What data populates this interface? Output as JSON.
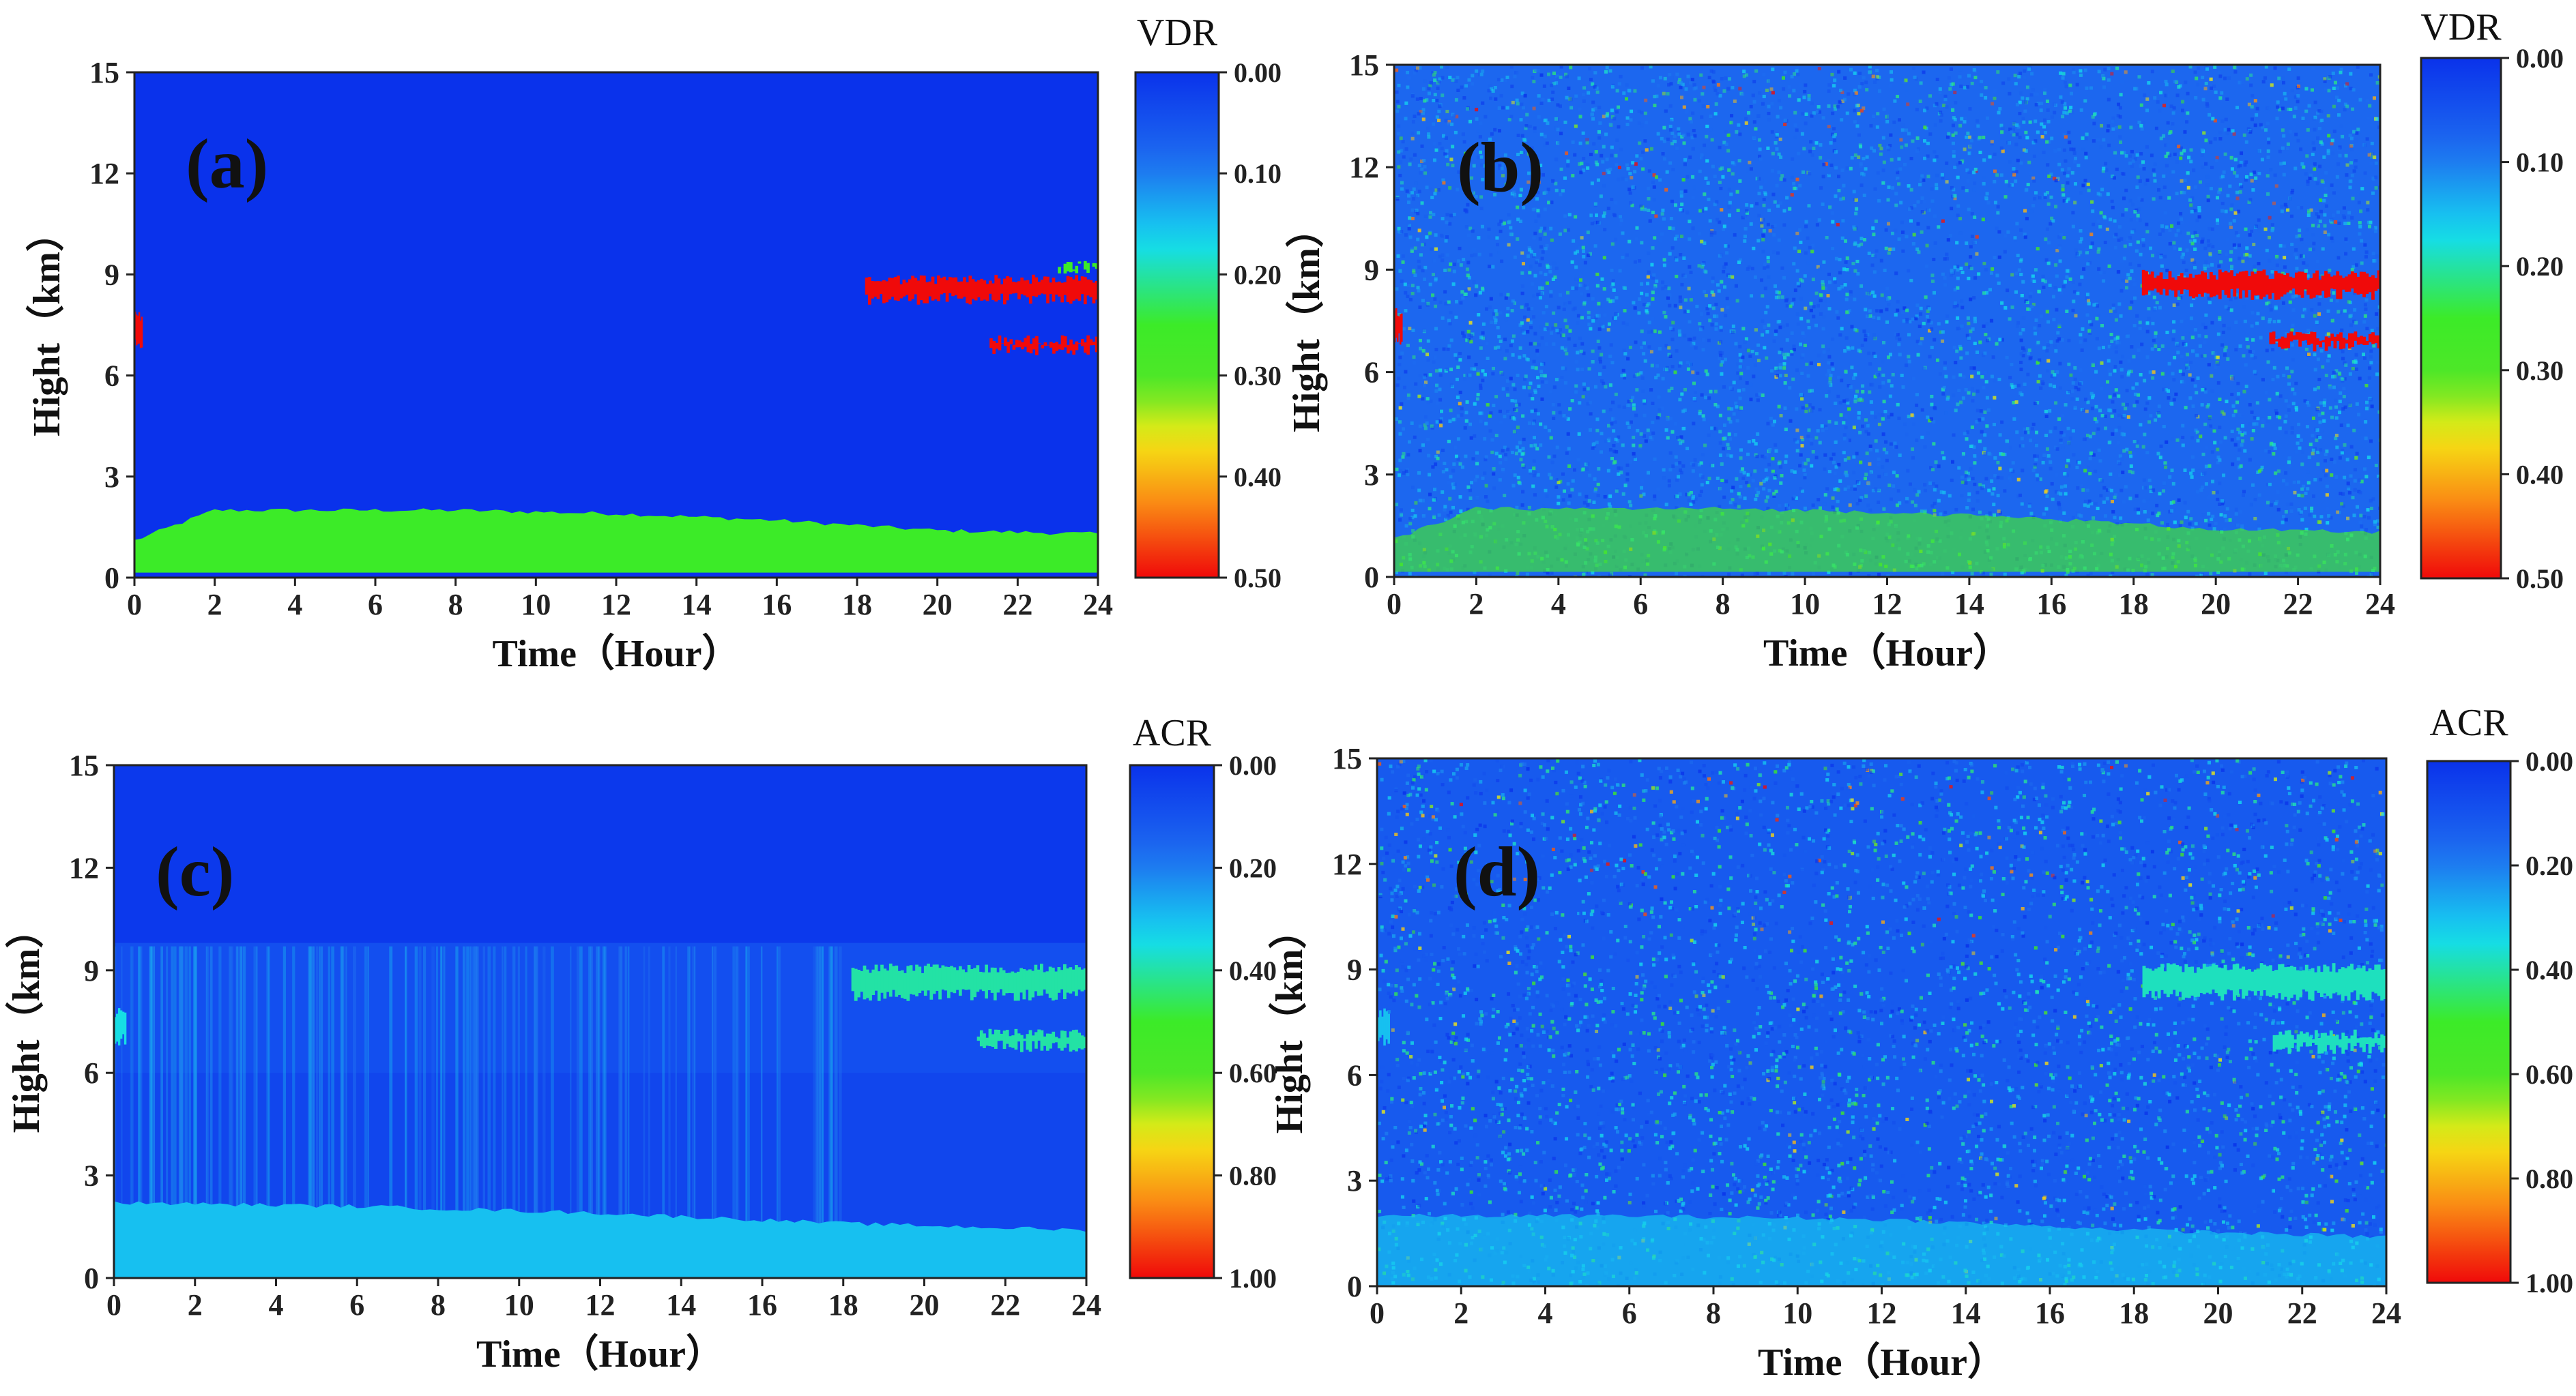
{
  "chart_data": [
    {
      "type": "heatmap",
      "panel_label": "(a)",
      "variant": "clean",
      "quantity": "VDR",
      "xlabel": "Time（Hour）",
      "ylabel": "Hight（km）",
      "xlim": [
        0,
        24
      ],
      "ylim": [
        0,
        15
      ],
      "xticks": [
        "0",
        "2",
        "4",
        "6",
        "8",
        "10",
        "12",
        "14",
        "16",
        "18",
        "20",
        "22",
        "24"
      ],
      "yticks": [
        "0",
        "3",
        "6",
        "9",
        "12",
        "15"
      ],
      "colorbar": {
        "title": "VDR",
        "range": [
          0,
          0.5
        ],
        "ticks": [
          "0.00",
          "0.10",
          "0.20",
          "0.30",
          "0.40",
          "0.50"
        ]
      },
      "background_value": 0.0,
      "layers": [
        {
          "name": "boundary layer aerosol",
          "value": 0.25,
          "t_start": 0.0,
          "t_end": 24.0,
          "top_km": [
            [
              0,
              1.1
            ],
            [
              2,
              2.0
            ],
            [
              8,
              2.0
            ],
            [
              12,
              1.9
            ],
            [
              16,
              1.7
            ],
            [
              20,
              1.4
            ],
            [
              24,
              1.3
            ]
          ],
          "base_km": 0.15
        },
        {
          "name": "ice cloud",
          "value": 0.5,
          "t_start": 18.2,
          "t_end": 24.0,
          "z_low": 8.1,
          "z_high": 9.0
        },
        {
          "name": "ice cloud lower",
          "value": 0.5,
          "t_start": 21.3,
          "t_end": 24.0,
          "z_low": 6.6,
          "z_high": 7.2
        },
        {
          "name": "cloud edge",
          "value": 0.25,
          "t_start": 23.0,
          "t_end": 24.0,
          "z_low": 9.0,
          "z_high": 9.4
        },
        {
          "name": "early cloud",
          "value": 0.5,
          "t_start": 0.0,
          "t_end": 0.2,
          "z_low": 6.8,
          "z_high": 7.9
        }
      ]
    },
    {
      "type": "heatmap",
      "panel_label": "(b)",
      "variant": "noisy",
      "quantity": "VDR",
      "xlabel": "Time（Hour）",
      "ylabel": "Hight（km）",
      "xlim": [
        0,
        24
      ],
      "ylim": [
        0,
        15
      ],
      "xticks": [
        "0",
        "2",
        "4",
        "6",
        "8",
        "10",
        "12",
        "14",
        "16",
        "18",
        "20",
        "22",
        "24"
      ],
      "yticks": [
        "0",
        "3",
        "6",
        "9",
        "12",
        "15"
      ],
      "colorbar": {
        "title": "VDR",
        "range": [
          0,
          0.5
        ],
        "ticks": [
          "0.00",
          "0.10",
          "0.20",
          "0.30",
          "0.40",
          "0.50"
        ]
      },
      "background_value": 0.08,
      "layers": [
        {
          "name": "boundary layer aerosol",
          "value": 0.28,
          "t_start": 0.0,
          "t_end": 24.0,
          "top_km": [
            [
              0,
              1.1
            ],
            [
              2,
              2.0
            ],
            [
              8,
              2.0
            ],
            [
              12,
              1.9
            ],
            [
              16,
              1.7
            ],
            [
              20,
              1.4
            ],
            [
              24,
              1.3
            ]
          ],
          "base_km": 0.15
        },
        {
          "name": "ice cloud",
          "value": 0.5,
          "t_start": 18.2,
          "t_end": 24.0,
          "z_low": 8.1,
          "z_high": 9.0
        },
        {
          "name": "ice cloud lower",
          "value": 0.5,
          "t_start": 21.3,
          "t_end": 24.0,
          "z_low": 6.6,
          "z_high": 7.2
        },
        {
          "name": "early cloud",
          "value": 0.5,
          "t_start": 0.0,
          "t_end": 0.2,
          "z_low": 6.8,
          "z_high": 7.9
        }
      ]
    },
    {
      "type": "heatmap",
      "panel_label": "(c)",
      "variant": "clean",
      "quantity": "ACR",
      "xlabel": "Time（Hour）",
      "ylabel": "Hight（km）",
      "xlim": [
        0,
        24
      ],
      "ylim": [
        0,
        15
      ],
      "xticks": [
        "0",
        "2",
        "4",
        "6",
        "8",
        "10",
        "12",
        "14",
        "16",
        "18",
        "20",
        "22",
        "24"
      ],
      "yticks": [
        "0",
        "3",
        "6",
        "9",
        "12",
        "15"
      ],
      "colorbar": {
        "title": "ACR",
        "range": [
          0,
          1.0
        ],
        "ticks": [
          "0.00",
          "0.20",
          "0.40",
          "0.60",
          "0.80",
          "1.00"
        ]
      },
      "background_value": 0.06,
      "layers": [
        {
          "name": "boundary layer aerosol",
          "value": 0.3,
          "t_start": 0.0,
          "t_end": 24.0,
          "top_km": [
            [
              0,
              2.2
            ],
            [
              6,
              2.1
            ],
            [
              12,
              1.9
            ],
            [
              18,
              1.6
            ],
            [
              24,
              1.4
            ]
          ],
          "base_km": 0.0
        },
        {
          "name": "ice cloud",
          "value": 0.4,
          "t_start": 18.2,
          "t_end": 24.0,
          "z_low": 8.1,
          "z_high": 9.2
        },
        {
          "name": "ice cloud lower",
          "value": 0.4,
          "t_start": 21.3,
          "t_end": 24.0,
          "z_low": 6.6,
          "z_high": 7.3
        },
        {
          "name": "early cloud",
          "value": 0.35,
          "t_start": 0.0,
          "t_end": 0.3,
          "z_low": 6.8,
          "z_high": 7.9
        }
      ]
    },
    {
      "type": "heatmap",
      "panel_label": "(d)",
      "variant": "noisy",
      "quantity": "ACR",
      "xlabel": "Time（Hour）",
      "ylabel": "Hight（km）",
      "xlim": [
        0,
        24
      ],
      "ylim": [
        0,
        15
      ],
      "xticks": [
        "0",
        "2",
        "4",
        "6",
        "8",
        "10",
        "12",
        "14",
        "16",
        "18",
        "20",
        "22",
        "24"
      ],
      "yticks": [
        "0",
        "3",
        "6",
        "9",
        "12",
        "15"
      ],
      "colorbar": {
        "title": "ACR",
        "range": [
          0,
          1.0
        ],
        "ticks": [
          "0.00",
          "0.20",
          "0.40",
          "0.60",
          "0.80",
          "1.00"
        ]
      },
      "background_value": 0.12,
      "layers": [
        {
          "name": "boundary layer aerosol",
          "value": 0.32,
          "t_start": 0.0,
          "t_end": 24.0,
          "top_km": [
            [
              0,
              2.0
            ],
            [
              6,
              2.0
            ],
            [
              12,
              1.9
            ],
            [
              18,
              1.6
            ],
            [
              24,
              1.4
            ]
          ],
          "base_km": 0.0
        },
        {
          "name": "ice cloud",
          "value": 0.38,
          "t_start": 18.2,
          "t_end": 24.0,
          "z_low": 8.1,
          "z_high": 9.2
        },
        {
          "name": "ice cloud lower",
          "value": 0.38,
          "t_start": 21.3,
          "t_end": 24.0,
          "z_low": 6.6,
          "z_high": 7.3
        },
        {
          "name": "early cloud",
          "value": 0.3,
          "t_start": 0.0,
          "t_end": 0.3,
          "z_low": 6.8,
          "z_high": 7.9
        }
      ]
    }
  ]
}
